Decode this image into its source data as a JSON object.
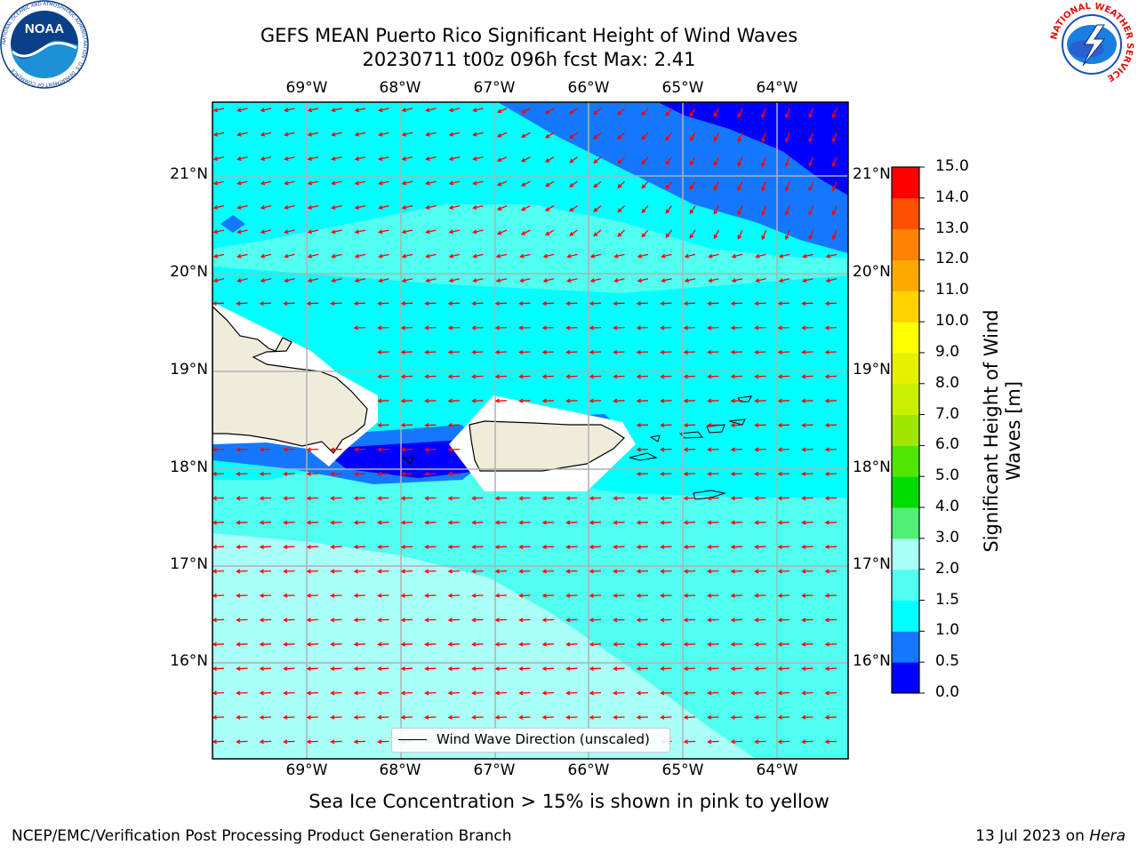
{
  "header": {
    "title_line1": "GEFS MEAN Puerto Rico Significant Height of Wind Waves",
    "title_line2": "20230711 t00z 096h fcst   Max: 2.41"
  },
  "logos": {
    "left": "NOAA",
    "left_ring": "NATIONAL OCEANIC AND ATMOSPHERIC ADMINISTRATION · U.S. DEPARTMENT OF COMMERCE",
    "right_ring": "NATIONAL WEATHER SERVICE"
  },
  "map": {
    "lon_labels": [
      "69°W",
      "68°W",
      "67°W",
      "66°W",
      "65°W",
      "64°W"
    ],
    "lat_labels": [
      "21°N",
      "20°N",
      "19°N",
      "18°N",
      "17°N",
      "16°N"
    ],
    "legend_label": "Wind Wave Direction (unscaled)",
    "colors": {
      "land": "#efecdc",
      "arrow": "#ff0000",
      "grid": "#b0b0b0"
    }
  },
  "colorbar": {
    "label_line1": "Significant Height of Wind",
    "label_line2": "Waves [m]",
    "ticks": [
      "0.0",
      "0.5",
      "1.0",
      "1.5",
      "2.0",
      "3.0",
      "4.0",
      "5.0",
      "6.0",
      "7.0",
      "8.0",
      "9.0",
      "10.0",
      "11.0",
      "12.0",
      "13.0",
      "14.0",
      "15.0"
    ],
    "colors": [
      "#0000ff",
      "#1478ff",
      "#00ffff",
      "#50fff0",
      "#aafff8",
      "#50f078",
      "#00dc00",
      "#50e600",
      "#a0e600",
      "#c8f000",
      "#e6f000",
      "#ffff00",
      "#ffd200",
      "#ffaa00",
      "#ff8200",
      "#ff5000",
      "#ff2800",
      "#ff0000"
    ]
  },
  "subtitle": "Sea Ice Concentration > 15% is shown in pink to yellow",
  "footer": {
    "left": "NCEP/EMC/Verification Post Processing Product Generation Branch",
    "right_prefix": "13 Jul 2023 on ",
    "right_machine": "Hera"
  }
}
